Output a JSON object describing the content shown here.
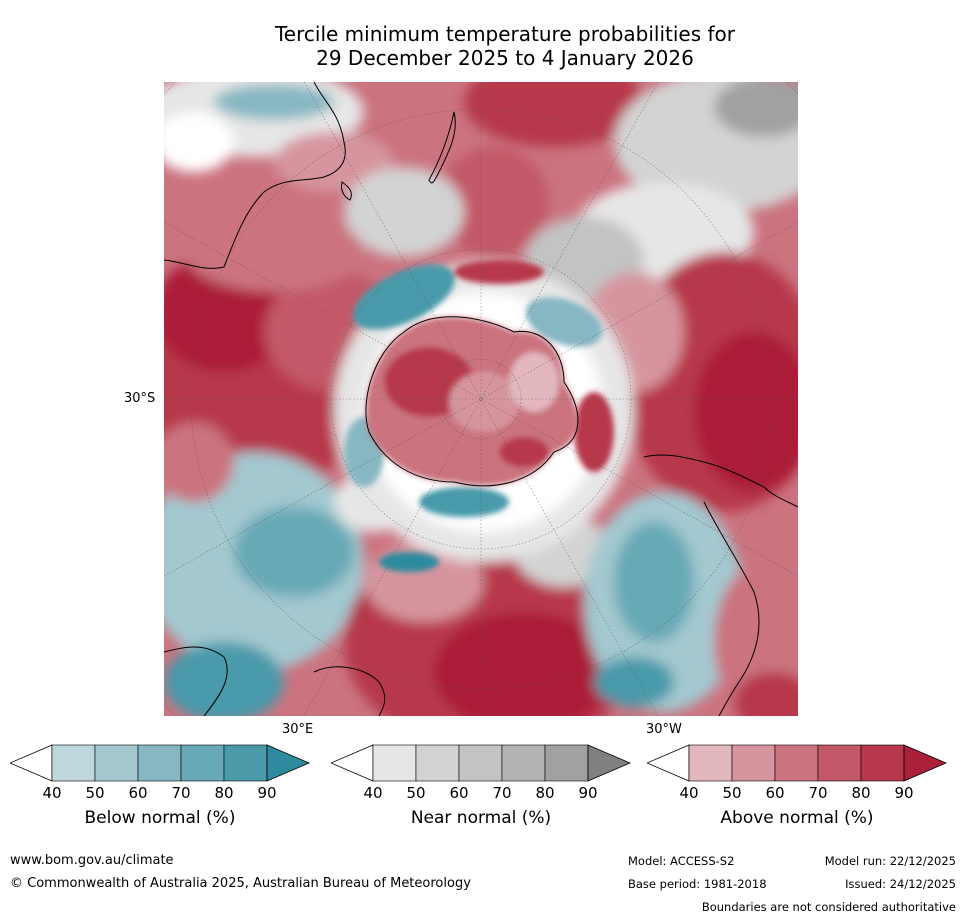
{
  "title": {
    "line1": "Tercile minimum temperature probabilities for",
    "line2": "29 December 2025 to 4 January 2026"
  },
  "map": {
    "lat_label": "30°S",
    "lon_labels": [
      "30°E",
      "30°W"
    ]
  },
  "colorbars": [
    {
      "title": "Below normal (%)",
      "ticks": [
        "40",
        "50",
        "60",
        "70",
        "80",
        "90"
      ],
      "colors": [
        "#ffffff",
        "#bdd7dd",
        "#a3c8d0",
        "#87b7c3",
        "#67a9b6",
        "#4a9aaa",
        "#2e8a9e"
      ]
    },
    {
      "title": "Near normal (%)",
      "ticks": [
        "40",
        "50",
        "60",
        "70",
        "80",
        "90"
      ],
      "colors": [
        "#ffffff",
        "#e6e6e6",
        "#d3d3d3",
        "#c3c3c3",
        "#b3b3b3",
        "#a1a1a1",
        "#808080"
      ]
    },
    {
      "title": "Above normal (%)",
      "ticks": [
        "40",
        "50",
        "60",
        "70",
        "80",
        "90"
      ],
      "colors": [
        "#ffffff",
        "#e2b7bd",
        "#d6959e",
        "#cb737f",
        "#c25868",
        "#b7374c",
        "#ab1f39"
      ]
    }
  ],
  "footer": {
    "website": "www.bom.gov.au/climate",
    "copyright": "© Commonwealth of Australia 2025, Australian Bureau of Meteorology",
    "model": "Model: ACCESS-S2",
    "base_period": "Base period: 1981-2018",
    "model_run": "Model run: 22/12/2025",
    "issued": "Issued: 24/12/2025",
    "disclaimer": "Boundaries are not considered authoritative"
  }
}
